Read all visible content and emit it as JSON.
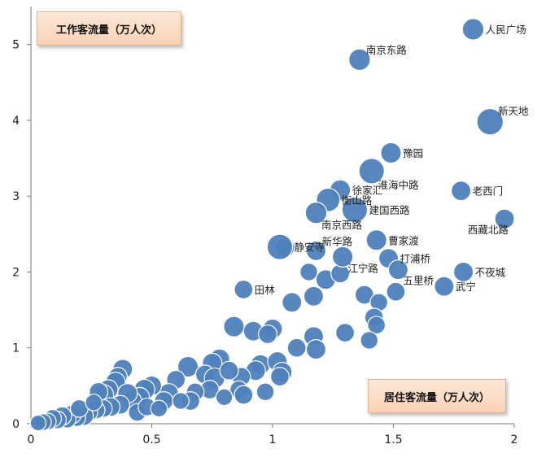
{
  "chart_data": {
    "type": "scatter",
    "xlabel": "居住客流量（万人次）",
    "ylabel": "工作客流量（万人次）",
    "xlim": [
      0,
      2
    ],
    "ylim": [
      0,
      5.5
    ],
    "xticks": [
      "0",
      "0.5",
      "1",
      "1.5",
      "2"
    ],
    "yticks": [
      "0",
      "1",
      "2",
      "3",
      "4",
      "5"
    ],
    "grid": false,
    "marker_color": "#4f81bd",
    "labeled_points": [
      {
        "label": "人民广场",
        "x": 1.83,
        "y": 5.2,
        "size": 1.1,
        "label_pos": "right"
      },
      {
        "label": "南京东路",
        "x": 1.36,
        "y": 4.8,
        "size": 1.1,
        "label_pos": "upper-right"
      },
      {
        "label": "新天地",
        "x": 1.9,
        "y": 3.98,
        "size": 1.35,
        "label_pos": "upper-right"
      },
      {
        "label": "豫园",
        "x": 1.49,
        "y": 3.57,
        "size": 1.05,
        "label_pos": "right"
      },
      {
        "label": "淮海中路",
        "x": 1.41,
        "y": 3.33,
        "size": 1.3,
        "label_pos": "lower-right"
      },
      {
        "label": "徐家汇",
        "x": 1.28,
        "y": 3.08,
        "size": 1.05,
        "label_pos": "right"
      },
      {
        "label": "老西门",
        "x": 1.78,
        "y": 3.07,
        "size": 1.0,
        "label_pos": "right"
      },
      {
        "label": "衡山路",
        "x": 1.23,
        "y": 2.95,
        "size": 1.2,
        "label_pos": "right"
      },
      {
        "label": "建国西路",
        "x": 1.34,
        "y": 2.82,
        "size": 1.3,
        "label_pos": "right"
      },
      {
        "label": "南京西路",
        "x": 1.18,
        "y": 2.78,
        "size": 1.1,
        "label_pos": "lower-right"
      },
      {
        "label": "西藏北路",
        "x": 1.96,
        "y": 2.7,
        "size": 1.0,
        "label_pos": "lower-left"
      },
      {
        "label": "曹家渡",
        "x": 1.43,
        "y": 2.42,
        "size": 1.05,
        "label_pos": "right"
      },
      {
        "label": "静安寺",
        "x": 1.03,
        "y": 2.33,
        "size": 1.3,
        "label_pos": "right"
      },
      {
        "label": "新华路",
        "x": 1.18,
        "y": 2.28,
        "size": 1.0,
        "label_pos": "upper-right"
      },
      {
        "label": "打浦桥",
        "x": 1.48,
        "y": 2.18,
        "size": 1.0,
        "label_pos": "right"
      },
      {
        "label": "江宁路",
        "x": 1.29,
        "y": 2.2,
        "size": 1.05,
        "label_pos": "lower-right"
      },
      {
        "label": "不夜城",
        "x": 1.79,
        "y": 2.0,
        "size": 1.0,
        "label_pos": "right"
      },
      {
        "label": "五里桥",
        "x": 1.52,
        "y": 2.03,
        "size": 1.0,
        "label_pos": "lower-right"
      },
      {
        "label": "武宁",
        "x": 1.71,
        "y": 1.81,
        "size": 1.0,
        "label_pos": "right"
      },
      {
        "label": "田林",
        "x": 0.88,
        "y": 1.77,
        "size": 0.95,
        "label_pos": "right"
      }
    ],
    "points": [
      {
        "x": 1.05,
        "y": 2.32,
        "size": 1.0
      },
      {
        "x": 1.15,
        "y": 2.0,
        "size": 0.9
      },
      {
        "x": 1.22,
        "y": 1.9,
        "size": 1.0
      },
      {
        "x": 1.28,
        "y": 1.98,
        "size": 0.95
      },
      {
        "x": 1.38,
        "y": 1.7,
        "size": 0.95
      },
      {
        "x": 1.44,
        "y": 1.6,
        "size": 0.9
      },
      {
        "x": 1.51,
        "y": 1.74,
        "size": 0.95
      },
      {
        "x": 1.08,
        "y": 1.6,
        "size": 1.0
      },
      {
        "x": 1.17,
        "y": 1.68,
        "size": 1.0
      },
      {
        "x": 1.42,
        "y": 1.4,
        "size": 0.95
      },
      {
        "x": 1.43,
        "y": 1.3,
        "size": 0.9
      },
      {
        "x": 1.3,
        "y": 1.2,
        "size": 0.95
      },
      {
        "x": 1.4,
        "y": 1.1,
        "size": 0.9
      },
      {
        "x": 1.17,
        "y": 1.15,
        "size": 1.0
      },
      {
        "x": 1.1,
        "y": 1.0,
        "size": 0.95
      },
      {
        "x": 1.18,
        "y": 0.98,
        "size": 1.0
      },
      {
        "x": 0.84,
        "y": 1.28,
        "size": 1.05
      },
      {
        "x": 0.92,
        "y": 1.22,
        "size": 1.0
      },
      {
        "x": 1.0,
        "y": 1.25,
        "size": 1.0
      },
      {
        "x": 0.98,
        "y": 1.18,
        "size": 0.95
      },
      {
        "x": 0.95,
        "y": 0.78,
        "size": 1.0
      },
      {
        "x": 1.02,
        "y": 0.82,
        "size": 1.0
      },
      {
        "x": 1.04,
        "y": 0.68,
        "size": 1.0
      },
      {
        "x": 1.03,
        "y": 0.62,
        "size": 0.95
      },
      {
        "x": 0.93,
        "y": 0.7,
        "size": 1.0
      },
      {
        "x": 0.87,
        "y": 0.62,
        "size": 0.95
      },
      {
        "x": 0.78,
        "y": 0.85,
        "size": 1.05
      },
      {
        "x": 0.75,
        "y": 0.8,
        "size": 1.0
      },
      {
        "x": 0.65,
        "y": 0.75,
        "size": 1.05
      },
      {
        "x": 0.72,
        "y": 0.65,
        "size": 0.95
      },
      {
        "x": 0.76,
        "y": 0.6,
        "size": 1.05
      },
      {
        "x": 0.82,
        "y": 0.7,
        "size": 0.95
      },
      {
        "x": 0.86,
        "y": 0.45,
        "size": 0.9
      },
      {
        "x": 0.88,
        "y": 0.38,
        "size": 0.95
      },
      {
        "x": 0.97,
        "y": 0.42,
        "size": 0.9
      },
      {
        "x": 0.74,
        "y": 0.45,
        "size": 0.95
      },
      {
        "x": 0.68,
        "y": 0.42,
        "size": 0.9
      },
      {
        "x": 0.66,
        "y": 0.3,
        "size": 0.95
      },
      {
        "x": 0.6,
        "y": 0.58,
        "size": 0.95
      },
      {
        "x": 0.57,
        "y": 0.4,
        "size": 1.0
      },
      {
        "x": 0.55,
        "y": 0.3,
        "size": 0.95
      },
      {
        "x": 0.5,
        "y": 0.5,
        "size": 1.0
      },
      {
        "x": 0.47,
        "y": 0.45,
        "size": 1.05
      },
      {
        "x": 0.45,
        "y": 0.35,
        "size": 1.0
      },
      {
        "x": 0.42,
        "y": 0.3,
        "size": 0.95
      },
      {
        "x": 0.38,
        "y": 0.72,
        "size": 1.0
      },
      {
        "x": 0.36,
        "y": 0.62,
        "size": 0.95
      },
      {
        "x": 0.35,
        "y": 0.55,
        "size": 1.0
      },
      {
        "x": 0.32,
        "y": 0.45,
        "size": 1.0
      },
      {
        "x": 0.3,
        "y": 0.38,
        "size": 1.05
      },
      {
        "x": 0.28,
        "y": 0.42,
        "size": 0.95
      },
      {
        "x": 0.4,
        "y": 0.4,
        "size": 1.0
      },
      {
        "x": 0.37,
        "y": 0.25,
        "size": 0.95
      },
      {
        "x": 0.33,
        "y": 0.22,
        "size": 0.95
      },
      {
        "x": 0.3,
        "y": 0.2,
        "size": 0.9
      },
      {
        "x": 0.27,
        "y": 0.18,
        "size": 0.9
      },
      {
        "x": 0.24,
        "y": 0.15,
        "size": 0.9
      },
      {
        "x": 0.22,
        "y": 0.1,
        "size": 0.95
      },
      {
        "x": 0.19,
        "y": 0.08,
        "size": 0.9
      },
      {
        "x": 0.17,
        "y": 0.12,
        "size": 0.95
      },
      {
        "x": 0.15,
        "y": 0.06,
        "size": 0.9
      },
      {
        "x": 0.13,
        "y": 0.1,
        "size": 0.95
      },
      {
        "x": 0.11,
        "y": 0.05,
        "size": 0.9
      },
      {
        "x": 0.09,
        "y": 0.07,
        "size": 0.9
      },
      {
        "x": 0.07,
        "y": 0.03,
        "size": 0.85
      },
      {
        "x": 0.05,
        "y": 0.02,
        "size": 0.85
      },
      {
        "x": 0.03,
        "y": 0.01,
        "size": 0.8
      },
      {
        "x": 0.2,
        "y": 0.2,
        "size": 0.9
      },
      {
        "x": 0.44,
        "y": 0.15,
        "size": 0.9
      },
      {
        "x": 0.48,
        "y": 0.22,
        "size": 0.9
      },
      {
        "x": 0.53,
        "y": 0.2,
        "size": 0.85
      },
      {
        "x": 0.62,
        "y": 0.3,
        "size": 0.85
      },
      {
        "x": 0.8,
        "y": 0.35,
        "size": 0.85
      },
      {
        "x": 0.26,
        "y": 0.28,
        "size": 0.85
      }
    ]
  }
}
